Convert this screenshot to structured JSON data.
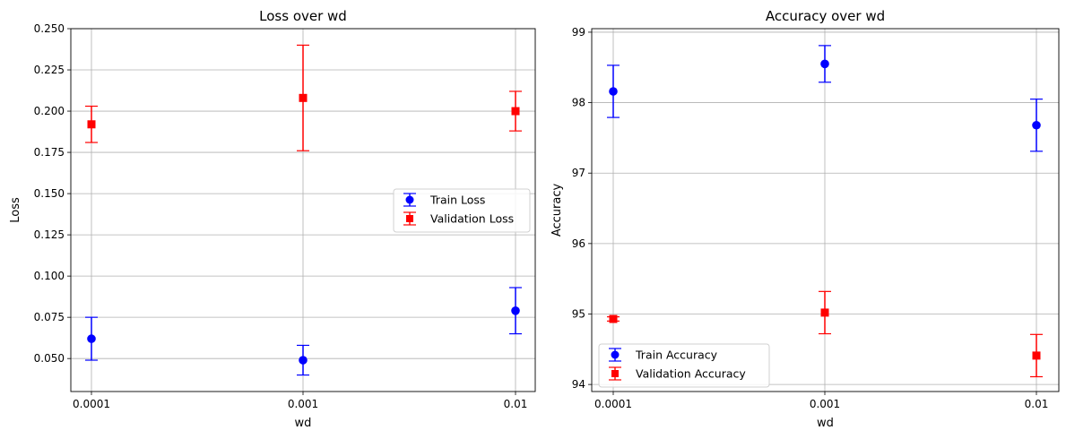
{
  "chart_data": [
    {
      "type": "scatter",
      "title": "Loss over wd",
      "xlabel": "wd",
      "ylabel": "Loss",
      "categories": [
        "0.0001",
        "0.001",
        "0.01"
      ],
      "ylim": [
        0.03,
        0.25
      ],
      "yticks": [
        "0.050",
        "0.075",
        "0.100",
        "0.125",
        "0.150",
        "0.175",
        "0.200",
        "0.225",
        "0.250"
      ],
      "grid": true,
      "legend_position": "center-right",
      "series": [
        {
          "name": "Train Loss",
          "marker": "circle",
          "color": "#0000ff",
          "values": [
            0.062,
            0.049,
            0.079
          ],
          "errors": [
            0.013,
            0.009,
            0.014
          ]
        },
        {
          "name": "Validation Loss",
          "marker": "square",
          "color": "#ff0000",
          "values": [
            0.192,
            0.208,
            0.2
          ],
          "errors": [
            0.011,
            0.032,
            0.012
          ]
        }
      ]
    },
    {
      "type": "scatter",
      "title": "Accuracy over wd",
      "xlabel": "wd",
      "ylabel": "Accuracy",
      "categories": [
        "0.0001",
        "0.001",
        "0.01"
      ],
      "ylim": [
        93.9,
        99.05
      ],
      "yticks": [
        "94",
        "95",
        "96",
        "97",
        "98",
        "99"
      ],
      "grid": true,
      "legend_position": "lower-left",
      "series": [
        {
          "name": "Train Accuracy",
          "marker": "circle",
          "color": "#0000ff",
          "values": [
            98.16,
            98.55,
            97.68
          ],
          "errors": [
            0.37,
            0.26,
            0.37
          ]
        },
        {
          "name": "Validation Accuracy",
          "marker": "square",
          "color": "#ff0000",
          "values": [
            94.93,
            95.02,
            94.41
          ],
          "errors": [
            0.03,
            0.3,
            0.3
          ]
        }
      ]
    }
  ]
}
